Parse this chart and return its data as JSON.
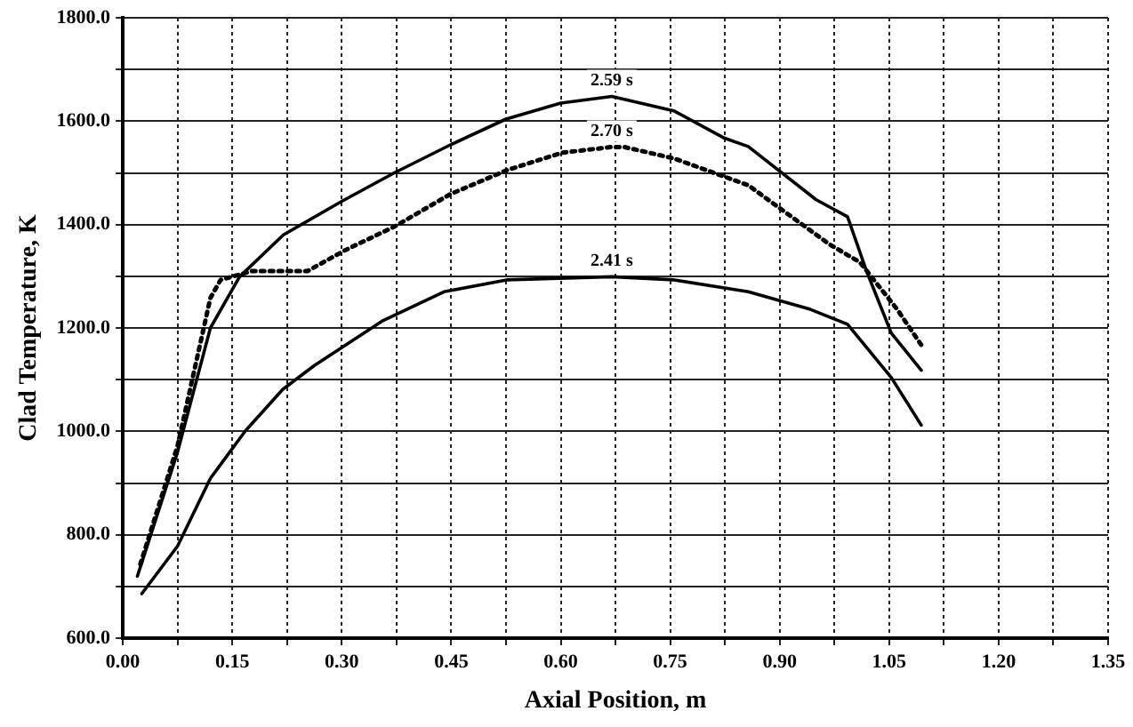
{
  "chart_data": {
    "type": "line",
    "xlabel": "Axial Position, m",
    "ylabel": "Clad Temperature, K",
    "xlim": [
      0,
      1.35
    ],
    "ylim": [
      600,
      1800
    ],
    "xticks": [
      {
        "value": 0,
        "label": "0.00"
      },
      {
        "value": 0.075,
        "label": null
      },
      {
        "value": 0.15,
        "label": "0.15"
      },
      {
        "value": 0.225,
        "label": null
      },
      {
        "value": 0.3,
        "label": "0.30"
      },
      {
        "value": 0.375,
        "label": null
      },
      {
        "value": 0.45,
        "label": "0.45"
      },
      {
        "value": 0.525,
        "label": null
      },
      {
        "value": 0.6,
        "label": "0.60"
      },
      {
        "value": 0.675,
        "label": null
      },
      {
        "value": 0.75,
        "label": "0.75"
      },
      {
        "value": 0.825,
        "label": null
      },
      {
        "value": 0.9,
        "label": "0.90"
      },
      {
        "value": 0.975,
        "label": null
      },
      {
        "value": 1.05,
        "label": "1.05"
      },
      {
        "value": 1.125,
        "label": null
      },
      {
        "value": 1.2,
        "label": "1.20"
      },
      {
        "value": 1.275,
        "label": null
      },
      {
        "value": 1.35,
        "label": "1.35"
      }
    ],
    "yticks": [
      {
        "value": 600,
        "label": "600.0"
      },
      {
        "value": 700,
        "label": null
      },
      {
        "value": 800,
        "label": "800.0"
      },
      {
        "value": 900,
        "label": null
      },
      {
        "value": 1000,
        "label": "1000.0"
      },
      {
        "value": 1100,
        "label": null
      },
      {
        "value": 1200,
        "label": "1200.0"
      },
      {
        "value": 1300,
        "label": null
      },
      {
        "value": 1400,
        "label": "1400.0"
      },
      {
        "value": 1500,
        "label": null
      },
      {
        "value": 1600,
        "label": "1600.0"
      },
      {
        "value": 1700,
        "label": null
      },
      {
        "value": 1800,
        "label": "1800.0"
      }
    ],
    "grid": true,
    "marker": "none",
    "legend": false,
    "series": [
      {
        "name": "2.59 s",
        "color": "#000000",
        "line_style": "solid",
        "x": [
          0.02,
          0.075,
          0.12,
          0.16,
          0.22,
          0.3,
          0.372,
          0.45,
          0.525,
          0.6,
          0.67,
          0.755,
          0.823,
          0.857,
          0.95,
          0.993,
          1.019,
          1.053,
          1.094
        ],
        "values": [
          720,
          960,
          1200,
          1299,
          1380,
          1445,
          1500,
          1555,
          1604,
          1635,
          1648,
          1620,
          1568,
          1551,
          1448,
          1415,
          1310,
          1190,
          1118
        ]
      },
      {
        "name": "2.70 s",
        "color": "#000000",
        "line_style": "dotted",
        "x": [
          0.024,
          0.075,
          0.12,
          0.134,
          0.177,
          0.253,
          0.304,
          0.372,
          0.449,
          0.526,
          0.602,
          0.67,
          0.687,
          0.755,
          0.857,
          0.968,
          1.01,
          1.061,
          1.094
        ],
        "values": [
          743,
          972,
          1258,
          1293,
          1310,
          1310,
          1350,
          1396,
          1459,
          1505,
          1539,
          1550,
          1550,
          1528,
          1476,
          1362,
          1327,
          1236,
          1167
        ]
      },
      {
        "name": "2.41 s",
        "color": "#000000",
        "line_style": "solid",
        "x": [
          0.026,
          0.075,
          0.12,
          0.168,
          0.219,
          0.262,
          0.355,
          0.44,
          0.526,
          0.67,
          0.755,
          0.857,
          0.942,
          0.993,
          1.053,
          1.094
        ],
        "values": [
          686,
          778,
          909,
          1001,
          1081,
          1127,
          1213,
          1270,
          1293,
          1299,
          1293,
          1270,
          1236,
          1207,
          1104,
          1012
        ]
      }
    ]
  }
}
